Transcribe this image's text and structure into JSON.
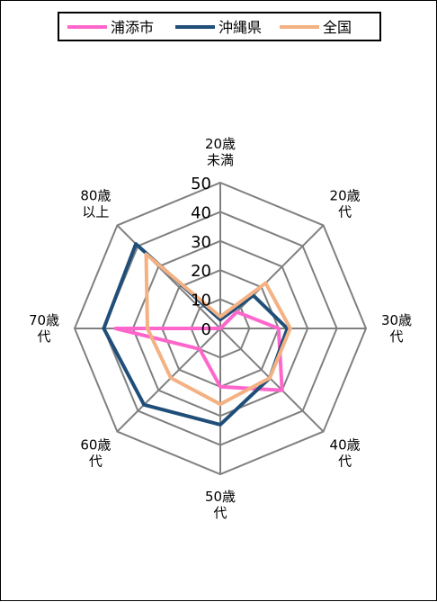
{
  "chart_data": {
    "type": "radar",
    "categories": [
      [
        "20歳",
        "未満"
      ],
      [
        "20歳",
        "代"
      ],
      [
        "30歳",
        "代"
      ],
      [
        "40歳",
        "代"
      ],
      [
        "50歳",
        "代"
      ],
      [
        "60歳",
        "代"
      ],
      [
        "70歳",
        "代"
      ],
      [
        "80歳",
        "以上"
      ]
    ],
    "rticks": [
      "0",
      "10",
      "20",
      "30",
      "40",
      "50"
    ],
    "rmax": 50,
    "grid_levels": [
      10,
      20,
      30,
      40,
      50
    ],
    "legend_position": "top",
    "series": [
      {
        "name": "浦添市",
        "color": "#ff66cc",
        "values": [
          0,
          8,
          20,
          30,
          20,
          10,
          36,
          0
        ]
      },
      {
        "name": "沖縄県",
        "color": "#1f4e79",
        "values": [
          3,
          16,
          23,
          24,
          33,
          37,
          40,
          41
        ]
      },
      {
        "name": "全国",
        "color": "#f4b183",
        "values": [
          4,
          22,
          24,
          24,
          26,
          24,
          25,
          36
        ]
      }
    ]
  }
}
